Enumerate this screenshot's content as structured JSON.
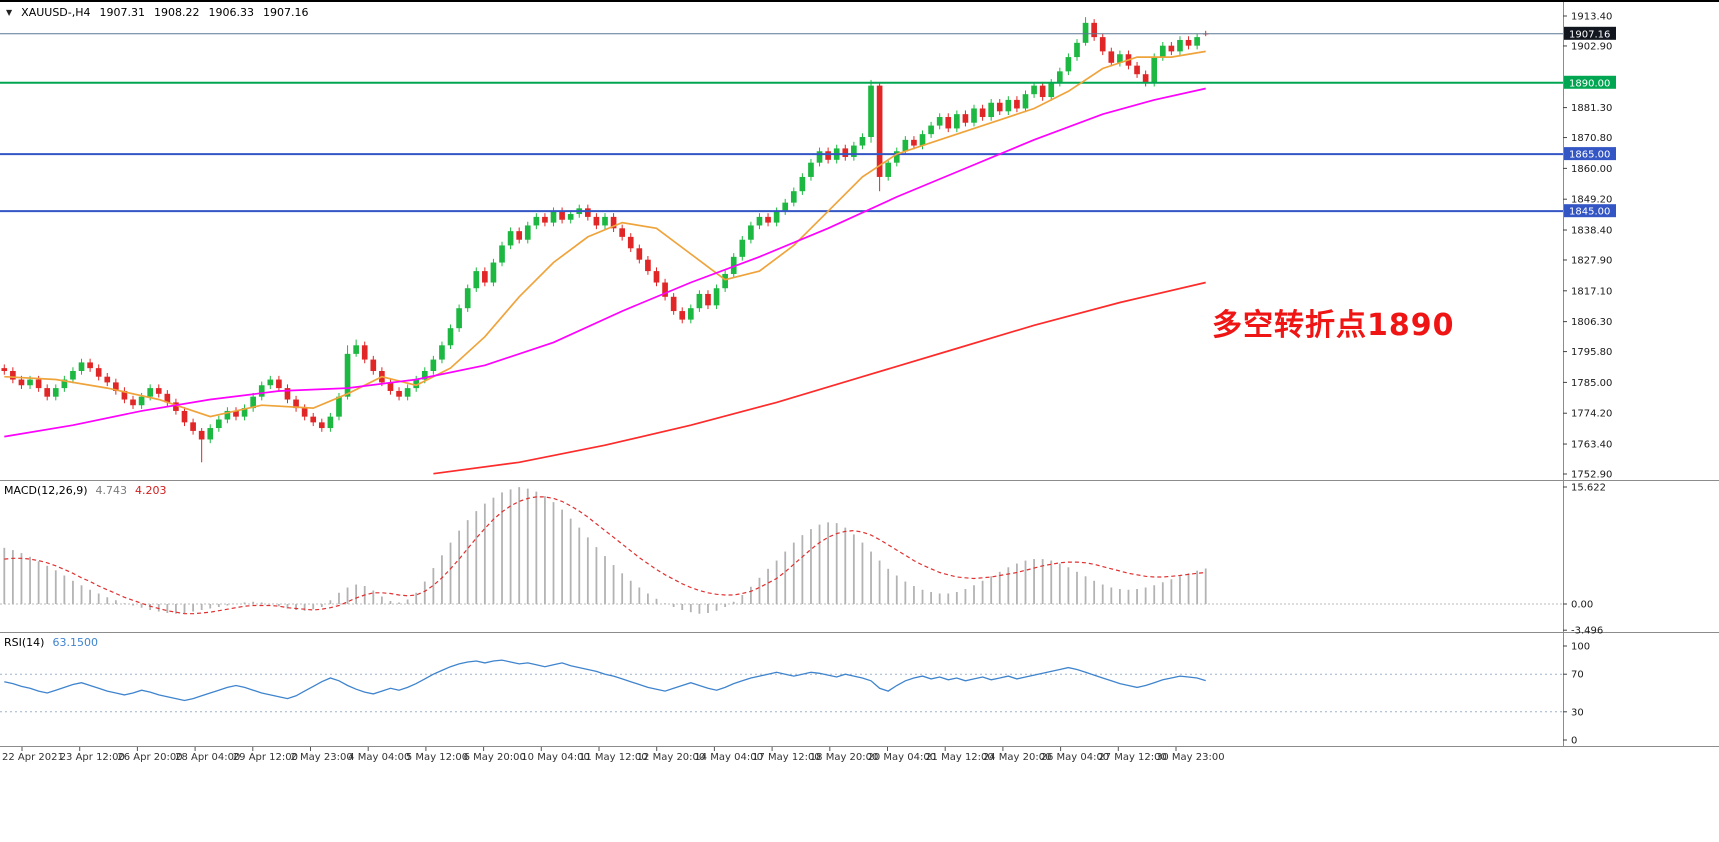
{
  "header": {
    "symbol": "XAUUSD-,H4",
    "open": "1907.31",
    "high": "1908.22",
    "low": "1906.33",
    "close": "1907.16"
  },
  "annotation": {
    "text": "多空转折点1890",
    "color": "#ef1515"
  },
  "indicators": {
    "macd": {
      "label": "MACD(12,26,9)",
      "value_main": "4.743",
      "value_signal": "4.203"
    },
    "rsi": {
      "label": "RSI(14)",
      "value": "63.1500"
    }
  },
  "price_axis": {
    "badges": [
      {
        "value": "1907.16",
        "bg": "#12161f",
        "type": "current-price"
      },
      {
        "value": "1890.00",
        "bg": "#00a651",
        "type": "level"
      },
      {
        "value": "1865.00",
        "bg": "#3356c4",
        "type": "level"
      },
      {
        "value": "1845.00",
        "bg": "#3356c4",
        "type": "level"
      }
    ]
  },
  "colors": {
    "up": "#1cb841",
    "down": "#e02626",
    "ma_fast": "#efa33b",
    "ma_mid": "#ff00ff",
    "ma_slow": "#ff2a2a",
    "level_green": "#00a651",
    "level_blue": "#3356c4",
    "current_line": "#5a7894",
    "macd_hist": "#b3b3b3",
    "macd_signal": "#e03030",
    "rsi_line": "#3f84cd",
    "separator": "#8c8c8c",
    "axis_text": "#1a1a1a",
    "date_text": "#333333"
  },
  "chart_data": [
    {
      "type": "candlestick",
      "symbol": "XAUUSD-",
      "timeframe": "H4",
      "y_range": [
        1752.9,
        1913.4
      ],
      "y_ticks": [
        "1913.40",
        "1902.90",
        "1881.30",
        "1870.80",
        "1860.00",
        "1849.20",
        "1838.40",
        "1827.90",
        "1817.10",
        "1806.30",
        "1795.80",
        "1785.00",
        "1774.20",
        "1763.40",
        "1752.90"
      ],
      "time_labels": [
        "22 Apr 2021",
        "23 Apr 12:00",
        "26 Apr 20:00",
        "28 Apr 04:00",
        "29 Apr 12:00",
        "2 May 23:00",
        "4 May 04:00",
        "5 May 12:00",
        "6 May 20:00",
        "10 May 04:00",
        "11 May 12:00",
        "12 May 20:00",
        "14 May 04:00",
        "17 May 12:00",
        "18 May 20:00",
        "20 May 04:00",
        "21 May 12:00",
        "24 May 20:00",
        "26 May 04:00",
        "27 May 12:00",
        "30 May 23:00"
      ],
      "current_price": 1907.16,
      "hlines": [
        {
          "price": 1890,
          "color": "#00a651",
          "width": 2
        },
        {
          "price": 1865,
          "color": "#3356c4",
          "width": 2
        },
        {
          "price": 1845,
          "color": "#3356c4",
          "width": 2
        }
      ],
      "closes": [
        1789,
        1786,
        1784,
        1786,
        1783,
        1780,
        1783,
        1786,
        1789,
        1792,
        1790,
        1787,
        1785,
        1782,
        1779,
        1777,
        1780,
        1783,
        1781,
        1778,
        1775,
        1771,
        1768,
        1765,
        1769,
        1772,
        1775,
        1773,
        1776,
        1780,
        1784,
        1786,
        1783,
        1779,
        1776,
        1773,
        1771,
        1769,
        1773,
        1780,
        1795,
        1798,
        1793,
        1789,
        1785,
        1782,
        1780,
        1783,
        1786,
        1789,
        1793,
        1798,
        1804,
        1811,
        1818,
        1824,
        1820,
        1827,
        1833,
        1838,
        1835,
        1840,
        1843,
        1841,
        1845,
        1842,
        1844,
        1846,
        1843,
        1840,
        1843,
        1839,
        1836,
        1832,
        1828,
        1824,
        1820,
        1815,
        1810,
        1807,
        1811,
        1816,
        1812,
        1818,
        1823,
        1829,
        1835,
        1840,
        1843,
        1841,
        1845,
        1848,
        1852,
        1857,
        1862,
        1866,
        1863,
        1867,
        1864,
        1868,
        1871,
        1889,
        1857,
        1862,
        1866,
        1870,
        1868,
        1872,
        1875,
        1878,
        1874,
        1879,
        1876,
        1881,
        1878,
        1883,
        1880,
        1884,
        1881,
        1886,
        1889,
        1885,
        1890,
        1894,
        1899,
        1904,
        1911,
        1906,
        1901,
        1897,
        1900,
        1896,
        1893,
        1890,
        1899,
        1903,
        1901,
        1905,
        1903,
        1906,
        1907.16
      ],
      "default_wick": 1.3,
      "overrides": {
        "23": [
          1768,
          1769,
          1757,
          1765
        ],
        "40": [
          1780,
          1798,
          1779,
          1795
        ],
        "41": [
          1795,
          1800,
          1794,
          1798
        ],
        "101": [
          1871,
          1891,
          1869,
          1889
        ],
        "102": [
          1889,
          1890,
          1852,
          1857
        ],
        "126": [
          1904,
          1913,
          1903,
          1911
        ],
        "140": [
          1907.31,
          1908.22,
          1906.33,
          1907.16
        ]
      },
      "ma": [
        {
          "name": "ma-fast-orange",
          "color": "#efa33b",
          "points": [
            [
              0,
              1787
            ],
            [
              6,
              1786
            ],
            [
              12,
              1783
            ],
            [
              18,
              1779
            ],
            [
              24,
              1773
            ],
            [
              30,
              1777
            ],
            [
              36,
              1776
            ],
            [
              40,
              1781
            ],
            [
              44,
              1787
            ],
            [
              48,
              1784
            ],
            [
              52,
              1790
            ],
            [
              56,
              1801
            ],
            [
              60,
              1815
            ],
            [
              64,
              1827
            ],
            [
              68,
              1836
            ],
            [
              72,
              1841
            ],
            [
              76,
              1839
            ],
            [
              80,
              1830
            ],
            [
              84,
              1821
            ],
            [
              88,
              1824
            ],
            [
              92,
              1833
            ],
            [
              96,
              1845
            ],
            [
              100,
              1857
            ],
            [
              104,
              1865
            ],
            [
              108,
              1869
            ],
            [
              112,
              1873
            ],
            [
              116,
              1877
            ],
            [
              120,
              1881
            ],
            [
              124,
              1887
            ],
            [
              128,
              1895
            ],
            [
              132,
              1899
            ],
            [
              136,
              1899
            ],
            [
              140,
              1901
            ]
          ]
        },
        {
          "name": "ma-mid-magenta",
          "color": "#ff00ff",
          "points": [
            [
              0,
              1766
            ],
            [
              8,
              1770
            ],
            [
              16,
              1775
            ],
            [
              24,
              1779
            ],
            [
              32,
              1782
            ],
            [
              40,
              1783
            ],
            [
              48,
              1786
            ],
            [
              56,
              1791
            ],
            [
              64,
              1799
            ],
            [
              72,
              1810
            ],
            [
              80,
              1820
            ],
            [
              88,
              1829
            ],
            [
              96,
              1839
            ],
            [
              104,
              1850
            ],
            [
              112,
              1860
            ],
            [
              120,
              1870
            ],
            [
              128,
              1879
            ],
            [
              134,
              1884
            ],
            [
              140,
              1888
            ]
          ]
        },
        {
          "name": "ma-slow-red",
          "color": "#ff2a2a",
          "points": [
            [
              50,
              1753
            ],
            [
              60,
              1757
            ],
            [
              70,
              1763
            ],
            [
              80,
              1770
            ],
            [
              90,
              1778
            ],
            [
              100,
              1787
            ],
            [
              110,
              1796
            ],
            [
              120,
              1805
            ],
            [
              130,
              1813
            ],
            [
              140,
              1820
            ]
          ]
        }
      ]
    },
    {
      "type": "bar",
      "name": "MACD(12,26,9)",
      "y_range": [
        -3.496,
        15.622
      ],
      "axis_ticks": [
        "15.622",
        "0.00",
        "-3.496"
      ],
      "histogram": [
        7.5,
        7.2,
        6.8,
        6.3,
        5.7,
        5.1,
        4.5,
        3.8,
        3.1,
        2.5,
        1.9,
        1.4,
        0.9,
        0.5,
        0.1,
        -0.2,
        -0.5,
        -0.8,
        -1.0,
        -1.2,
        -1.3,
        -1.2,
        -1.0,
        -0.8,
        -0.6,
        -0.4,
        -0.2,
        0.0,
        0.2,
        0.3,
        0.2,
        0.0,
        -0.3,
        -0.6,
        -0.8,
        -0.9,
        -0.7,
        -0.4,
        0.5,
        1.5,
        2.2,
        2.6,
        2.4,
        1.8,
        1.0,
        0.4,
        0.2,
        0.6,
        1.5,
        3.0,
        4.8,
        6.5,
        8.2,
        9.8,
        11.2,
        12.4,
        13.4,
        14.2,
        14.9,
        15.3,
        15.6,
        15.4,
        15.0,
        14.4,
        13.6,
        12.6,
        11.4,
        10.2,
        8.9,
        7.6,
        6.4,
        5.2,
        4.1,
        3.1,
        2.2,
        1.4,
        0.7,
        0.1,
        -0.4,
        -0.8,
        -1.1,
        -1.3,
        -1.2,
        -0.9,
        -0.4,
        0.3,
        1.2,
        2.3,
        3.5,
        4.7,
        5.8,
        7.0,
        8.2,
        9.2,
        10.0,
        10.6,
        10.9,
        10.8,
        10.2,
        9.3,
        8.2,
        7.0,
        5.8,
        4.7,
        3.8,
        3.0,
        2.4,
        1.9,
        1.6,
        1.4,
        1.4,
        1.6,
        2.0,
        2.5,
        3.1,
        3.7,
        4.3,
        4.9,
        5.4,
        5.8,
        6.0,
        6.0,
        5.8,
        5.4,
        4.9,
        4.3,
        3.7,
        3.1,
        2.6,
        2.2,
        2.0,
        1.9,
        2.0,
        2.2,
        2.5,
        2.9,
        3.3,
        3.7,
        4.1,
        4.45,
        4.743
      ],
      "signal": [
        6.0,
        6.1,
        6.1,
        6.0,
        5.8,
        5.5,
        5.1,
        4.6,
        4.1,
        3.5,
        3.0,
        2.4,
        1.9,
        1.4,
        0.9,
        0.5,
        0.1,
        -0.3,
        -0.6,
        -0.9,
        -1.1,
        -1.3,
        -1.3,
        -1.2,
        -1.1,
        -0.9,
        -0.7,
        -0.5,
        -0.3,
        -0.2,
        -0.2,
        -0.2,
        -0.3,
        -0.5,
        -0.6,
        -0.7,
        -0.8,
        -0.7,
        -0.5,
        -0.2,
        0.3,
        0.8,
        1.2,
        1.5,
        1.5,
        1.4,
        1.2,
        1.1,
        1.2,
        1.7,
        2.5,
        3.5,
        4.7,
        6.0,
        7.4,
        8.8,
        10.1,
        11.3,
        12.3,
        13.1,
        13.7,
        14.1,
        14.3,
        14.3,
        14.1,
        13.7,
        13.1,
        12.4,
        11.6,
        10.7,
        9.8,
        8.9,
        8.0,
        7.1,
        6.2,
        5.4,
        4.6,
        3.9,
        3.3,
        2.7,
        2.2,
        1.8,
        1.5,
        1.3,
        1.2,
        1.2,
        1.4,
        1.7,
        2.2,
        2.8,
        3.4,
        4.3,
        5.3,
        6.3,
        7.3,
        8.2,
        8.9,
        9.4,
        9.7,
        9.8,
        9.6,
        9.2,
        8.6,
        7.9,
        7.2,
        6.5,
        5.8,
        5.2,
        4.7,
        4.2,
        3.9,
        3.6,
        3.5,
        3.4,
        3.5,
        3.6,
        3.8,
        4.0,
        4.2,
        4.5,
        4.8,
        5.1,
        5.3,
        5.5,
        5.6,
        5.6,
        5.5,
        5.3,
        5.0,
        4.7,
        4.4,
        4.1,
        3.9,
        3.7,
        3.6,
        3.6,
        3.7,
        3.8,
        3.95,
        4.1,
        4.203
      ]
    },
    {
      "type": "line",
      "name": "RSI(14)",
      "y_range": [
        0,
        100
      ],
      "axis_ticks": [
        "100",
        "70",
        "30",
        "0"
      ],
      "levels": [
        70,
        30
      ],
      "current_value": 63.15,
      "values": [
        62,
        60,
        57,
        55,
        52,
        50,
        53,
        56,
        59,
        61,
        58,
        55,
        52,
        50,
        48,
        50,
        53,
        51,
        48,
        46,
        44,
        42,
        44,
        47,
        50,
        53,
        56,
        58,
        56,
        53,
        50,
        48,
        46,
        44,
        47,
        52,
        57,
        62,
        66,
        63,
        58,
        54,
        51,
        49,
        52,
        55,
        53,
        56,
        60,
        65,
        70,
        74,
        78,
        81,
        83,
        84,
        82,
        84,
        85,
        83,
        81,
        82,
        80,
        78,
        80,
        82,
        79,
        77,
        75,
        73,
        70,
        68,
        65,
        62,
        59,
        56,
        54,
        52,
        55,
        58,
        61,
        58,
        55,
        53,
        56,
        60,
        63,
        66,
        68,
        70,
        72,
        70,
        68,
        70,
        72,
        71,
        69,
        67,
        70,
        68,
        66,
        63,
        55,
        52,
        58,
        63,
        66,
        68,
        65,
        67,
        64,
        66,
        63,
        65,
        67,
        64,
        66,
        68,
        65,
        67,
        69,
        71,
        73,
        75,
        77,
        75,
        72,
        69,
        66,
        63,
        60,
        58,
        56,
        58,
        61,
        64,
        66,
        68,
        67,
        66,
        63.15
      ]
    }
  ]
}
